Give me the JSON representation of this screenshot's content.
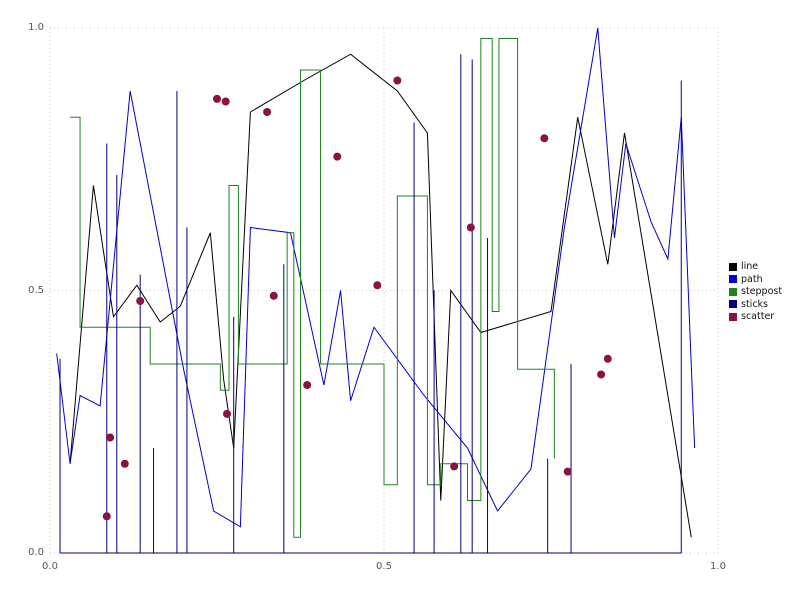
{
  "figure": {
    "background_color": "#ffffff",
    "grid_color": "#cccccc",
    "tick_label_color": "#555555"
  },
  "axes": {
    "x_ticks": [
      {
        "value": 0.0,
        "label": "0.0"
      },
      {
        "value": 0.5,
        "label": "0.5"
      },
      {
        "value": 1.0,
        "label": "1.0"
      }
    ],
    "y_ticks": [
      {
        "value": 0.0,
        "label": "0.0"
      },
      {
        "value": 0.5,
        "label": "0.5"
      },
      {
        "value": 1.0,
        "label": "1.0"
      }
    ]
  },
  "legend": {
    "position": "right",
    "items": [
      {
        "label": "line",
        "color": "#000000"
      },
      {
        "label": "path",
        "color": "#0000cc"
      },
      {
        "label": "steppost",
        "color": "#228022"
      },
      {
        "label": "sticks",
        "color": "#000080"
      },
      {
        "label": "scatter",
        "color": "#8b1242"
      }
    ]
  },
  "chart_data": {
    "type": "line",
    "title": "",
    "xlabel": "",
    "ylabel": "",
    "xlim": [
      0.0,
      1.0
    ],
    "ylim": [
      0.0,
      1.0
    ],
    "grid": true,
    "grid_style": "dotted",
    "legend_position": "right",
    "series": [
      {
        "name": "line",
        "type": "line",
        "color": "#000000",
        "points": [
          [
            0.03,
            0.17
          ],
          [
            0.065,
            0.7
          ],
          [
            0.095,
            0.45
          ],
          [
            0.13,
            0.51
          ],
          [
            0.165,
            0.44
          ],
          [
            0.195,
            0.47
          ],
          [
            0.24,
            0.61
          ],
          [
            0.26,
            0.33
          ],
          [
            0.275,
            0.2
          ],
          [
            0.3,
            0.84
          ],
          [
            0.38,
            0.9
          ],
          [
            0.45,
            0.95
          ],
          [
            0.52,
            0.88
          ],
          [
            0.565,
            0.8
          ],
          [
            0.585,
            0.1
          ],
          [
            0.6,
            0.5
          ],
          [
            0.645,
            0.42
          ],
          [
            0.75,
            0.46
          ],
          [
            0.79,
            0.83
          ],
          [
            0.835,
            0.55
          ],
          [
            0.86,
            0.8
          ],
          [
            0.96,
            0.03
          ]
        ]
      },
      {
        "name": "path",
        "type": "line",
        "color": "#0000cc",
        "points": [
          [
            0.01,
            0.38
          ],
          [
            0.03,
            0.17
          ],
          [
            0.045,
            0.3
          ],
          [
            0.075,
            0.28
          ],
          [
            0.12,
            0.88
          ],
          [
            0.2,
            0.35
          ],
          [
            0.245,
            0.08
          ],
          [
            0.285,
            0.05
          ],
          [
            0.3,
            0.62
          ],
          [
            0.36,
            0.61
          ],
          [
            0.41,
            0.32
          ],
          [
            0.435,
            0.5
          ],
          [
            0.45,
            0.29
          ],
          [
            0.485,
            0.43
          ],
          [
            0.56,
            0.3
          ],
          [
            0.625,
            0.2
          ],
          [
            0.67,
            0.08
          ],
          [
            0.72,
            0.16
          ],
          [
            0.77,
            0.62
          ],
          [
            0.82,
            1.0
          ],
          [
            0.845,
            0.6
          ],
          [
            0.862,
            0.78
          ],
          [
            0.9,
            0.63
          ],
          [
            0.925,
            0.56
          ],
          [
            0.945,
            0.83
          ],
          [
            0.965,
            0.2
          ]
        ]
      },
      {
        "name": "steppost",
        "type": "step-post",
        "color": "#228022",
        "points": [
          [
            0.03,
            0.83
          ],
          [
            0.045,
            0.43
          ],
          [
            0.15,
            0.36
          ],
          [
            0.255,
            0.31
          ],
          [
            0.268,
            0.7
          ],
          [
            0.282,
            0.36
          ],
          [
            0.355,
            0.61
          ],
          [
            0.365,
            0.03
          ],
          [
            0.375,
            0.92
          ],
          [
            0.405,
            0.36
          ],
          [
            0.5,
            0.13
          ],
          [
            0.52,
            0.68
          ],
          [
            0.565,
            0.13
          ],
          [
            0.585,
            0.17
          ],
          [
            0.625,
            0.1
          ],
          [
            0.645,
            0.98
          ],
          [
            0.662,
            0.46
          ],
          [
            0.672,
            0.98
          ],
          [
            0.7,
            0.35
          ],
          [
            0.755,
            0.18
          ]
        ]
      },
      {
        "name": "sticks",
        "type": "stem",
        "color": "#000080",
        "baseline": 0.0,
        "points": [
          [
            0.015,
            0.37
          ],
          [
            0.085,
            0.78
          ],
          [
            0.1,
            0.72
          ],
          [
            0.135,
            0.53
          ],
          [
            0.155,
            0.2
          ],
          [
            0.19,
            0.88
          ],
          [
            0.205,
            0.62
          ],
          [
            0.275,
            0.45
          ],
          [
            0.35,
            0.55
          ],
          [
            0.545,
            0.82
          ],
          [
            0.575,
            0.5
          ],
          [
            0.615,
            0.95
          ],
          [
            0.632,
            0.94
          ],
          [
            0.655,
            0.6
          ],
          [
            0.745,
            0.18
          ],
          [
            0.78,
            0.36
          ],
          [
            0.945,
            0.9
          ]
        ]
      },
      {
        "name": "scatter",
        "type": "scatter",
        "color": "#8b1242",
        "marker_size": 4,
        "points": [
          [
            0.085,
            0.07
          ],
          [
            0.09,
            0.22
          ],
          [
            0.112,
            0.17
          ],
          [
            0.135,
            0.48
          ],
          [
            0.25,
            0.865
          ],
          [
            0.263,
            0.86
          ],
          [
            0.265,
            0.265
          ],
          [
            0.325,
            0.84
          ],
          [
            0.335,
            0.49
          ],
          [
            0.385,
            0.32
          ],
          [
            0.43,
            0.755
          ],
          [
            0.49,
            0.51
          ],
          [
            0.52,
            0.9
          ],
          [
            0.605,
            0.165
          ],
          [
            0.63,
            0.62
          ],
          [
            0.74,
            0.79
          ],
          [
            0.775,
            0.155
          ],
          [
            0.825,
            0.34
          ],
          [
            0.835,
            0.37
          ]
        ]
      }
    ]
  }
}
